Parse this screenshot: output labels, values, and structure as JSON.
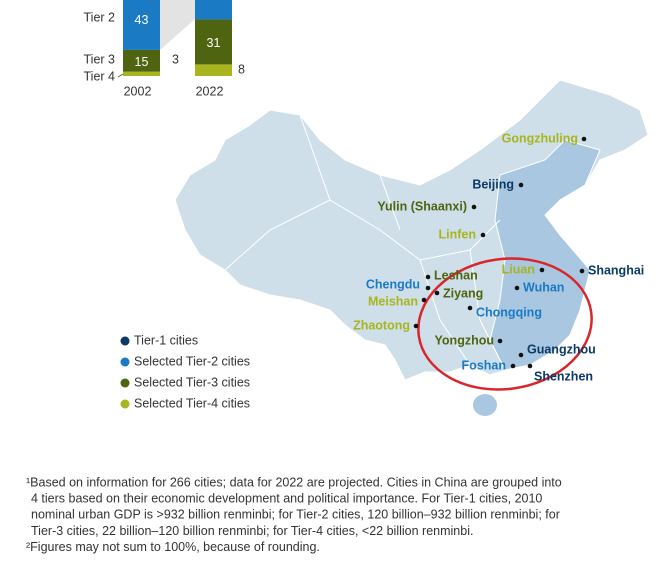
{
  "inset_chart": {
    "type": "bar",
    "stacked": true,
    "categories": [
      "2002",
      "2022"
    ],
    "series": [
      {
        "name": "Tier 2",
        "color": "#1a7ac4",
        "values": [
          43,
          null
        ]
      },
      {
        "name": "Tier 3",
        "color": "#4f6410",
        "values": [
          15,
          31
        ]
      },
      {
        "name": "Tier 4",
        "color": "#a8b51e",
        "values": [
          3,
          8
        ]
      }
    ]
  },
  "legend": [
    {
      "label": "Tier-1 cities",
      "color": "#0b3a66",
      "cities": [
        "Beijing",
        "Shanghai",
        "Guangzhou",
        "Shenzhen"
      ]
    },
    {
      "label": "Selected Tier-2 cities",
      "color": "#1a7ac4",
      "cities": [
        "Chengdu",
        "Wuhan",
        "Chongqing",
        "Foshan"
      ]
    },
    {
      "label": "Selected Tier-3 cities",
      "color": "#4f6410",
      "cities": [
        "Yulin (Shaanxi)",
        "Leshan",
        "Ziyang",
        "Yongzhou"
      ]
    },
    {
      "label": "Selected Tier-4 cities",
      "color": "#a8b51e",
      "cities": [
        "Gongzhuling",
        "Linfen",
        "Liuan",
        "Meishan",
        "Zhaotong"
      ]
    }
  ],
  "footnotes": [
    [
      "¹Based on information for 266 cities; data for 2022 are projected. Cities in China are grouped into",
      "4 tiers based on their economic development and political importance. For Tier-1 cities, 2010",
      "nominal urban GDP is >932 billion renminbi; for Tier-2 cities, 120 billion–932 billion renminbi; for",
      "Tier-3 cities, 22 billion–120 billion renminbi; for Tier-4 cities, <22 billion renminbi."
    ],
    [
      "²Figures may not sum to 100%, because of rounding."
    ]
  ]
}
